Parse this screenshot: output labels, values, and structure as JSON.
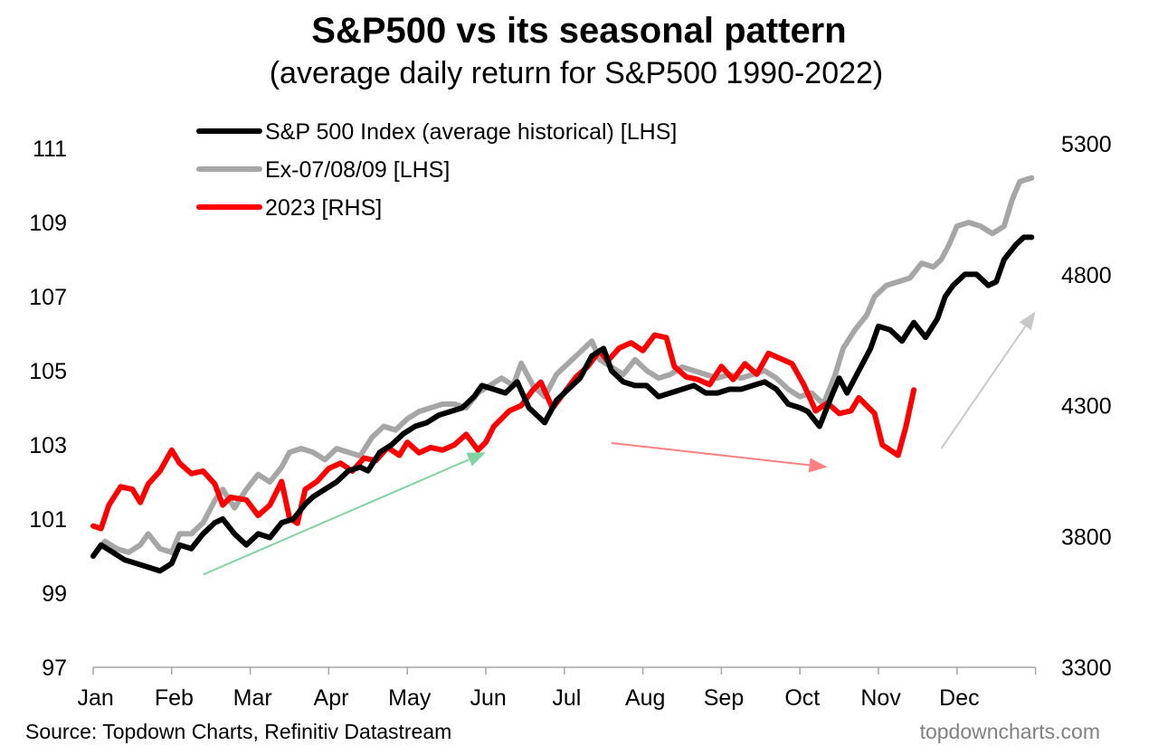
{
  "chart_data": {
    "type": "line",
    "title": "S&P500 vs its seasonal pattern",
    "subtitle": "(average daily return for S&P500 1990-2022)",
    "x_labels": [
      "Jan",
      "Feb",
      "Mar",
      "Apr",
      "May",
      "Jun",
      "Jul",
      "Aug",
      "Sep",
      "Oct",
      "Nov",
      "Dec"
    ],
    "y_left": {
      "ticks": [
        97,
        99,
        101,
        103,
        105,
        107,
        109,
        111
      ],
      "range": [
        97,
        112
      ]
    },
    "y_right": {
      "ticks": [
        3300,
        3800,
        4300,
        4800,
        5300
      ],
      "range": [
        3300,
        5300
      ]
    },
    "legend_position": "top-left",
    "series": [
      {
        "name": "S&P 500 Index (average historical) [LHS]",
        "axis": "left",
        "color": "#000000",
        "points": [
          [
            0,
            100.0
          ],
          [
            0.1,
            100.3
          ],
          [
            0.25,
            100.1
          ],
          [
            0.4,
            99.9
          ],
          [
            0.55,
            99.8
          ],
          [
            0.7,
            99.7
          ],
          [
            0.85,
            99.6
          ],
          [
            1.0,
            99.8
          ],
          [
            1.1,
            100.3
          ],
          [
            1.25,
            100.2
          ],
          [
            1.4,
            100.6
          ],
          [
            1.55,
            100.9
          ],
          [
            1.65,
            101.0
          ],
          [
            1.8,
            100.6
          ],
          [
            1.95,
            100.3
          ],
          [
            2.1,
            100.6
          ],
          [
            2.25,
            100.5
          ],
          [
            2.4,
            100.9
          ],
          [
            2.55,
            101.0
          ],
          [
            2.7,
            101.4
          ],
          [
            2.8,
            101.6
          ],
          [
            2.95,
            101.8
          ],
          [
            3.1,
            102.0
          ],
          [
            3.25,
            102.3
          ],
          [
            3.4,
            102.4
          ],
          [
            3.5,
            102.3
          ],
          [
            3.65,
            102.8
          ],
          [
            3.8,
            103.0
          ],
          [
            3.95,
            103.3
          ],
          [
            4.1,
            103.5
          ],
          [
            4.25,
            103.6
          ],
          [
            4.4,
            103.8
          ],
          [
            4.55,
            103.9
          ],
          [
            4.7,
            104.0
          ],
          [
            4.85,
            104.3
          ],
          [
            4.95,
            104.6
          ],
          [
            5.1,
            104.5
          ],
          [
            5.25,
            104.4
          ],
          [
            5.4,
            104.7
          ],
          [
            5.55,
            104.0
          ],
          [
            5.75,
            103.6
          ],
          [
            5.9,
            104.2
          ],
          [
            6.05,
            104.5
          ],
          [
            6.2,
            104.8
          ],
          [
            6.35,
            105.4
          ],
          [
            6.5,
            105.6
          ],
          [
            6.6,
            105.0
          ],
          [
            6.75,
            104.7
          ],
          [
            6.9,
            104.6
          ],
          [
            7.05,
            104.6
          ],
          [
            7.2,
            104.3
          ],
          [
            7.35,
            104.4
          ],
          [
            7.5,
            104.5
          ],
          [
            7.65,
            104.6
          ],
          [
            7.8,
            104.4
          ],
          [
            7.95,
            104.4
          ],
          [
            8.1,
            104.5
          ],
          [
            8.25,
            104.5
          ],
          [
            8.4,
            104.6
          ],
          [
            8.55,
            104.7
          ],
          [
            8.7,
            104.5
          ],
          [
            8.85,
            104.1
          ],
          [
            9.0,
            104.0
          ],
          [
            9.1,
            103.9
          ],
          [
            9.25,
            103.5
          ],
          [
            9.4,
            104.3
          ],
          [
            9.5,
            104.8
          ],
          [
            9.6,
            104.4
          ],
          [
            9.75,
            105.0
          ],
          [
            9.9,
            105.6
          ],
          [
            10.0,
            106.2
          ],
          [
            10.15,
            106.1
          ],
          [
            10.3,
            105.8
          ],
          [
            10.45,
            106.3
          ],
          [
            10.6,
            105.9
          ],
          [
            10.75,
            106.4
          ],
          [
            10.85,
            107.0
          ],
          [
            10.95,
            107.3
          ],
          [
            11.1,
            107.6
          ],
          [
            11.25,
            107.6
          ],
          [
            11.4,
            107.3
          ],
          [
            11.5,
            107.4
          ],
          [
            11.6,
            108.0
          ],
          [
            11.75,
            108.4
          ],
          [
            11.85,
            108.6
          ],
          [
            11.95,
            108.6
          ]
        ]
      },
      {
        "name": "Ex-07/08/09 [LHS]",
        "axis": "left",
        "color": "#a6a6a6",
        "points": [
          [
            0,
            100.0
          ],
          [
            0.15,
            100.4
          ],
          [
            0.3,
            100.2
          ],
          [
            0.45,
            100.1
          ],
          [
            0.6,
            100.3
          ],
          [
            0.7,
            100.6
          ],
          [
            0.85,
            100.2
          ],
          [
            1.0,
            100.1
          ],
          [
            1.1,
            100.6
          ],
          [
            1.25,
            100.6
          ],
          [
            1.4,
            100.9
          ],
          [
            1.55,
            101.5
          ],
          [
            1.65,
            101.8
          ],
          [
            1.8,
            101.3
          ],
          [
            1.95,
            101.8
          ],
          [
            2.1,
            102.2
          ],
          [
            2.25,
            102.0
          ],
          [
            2.4,
            102.4
          ],
          [
            2.5,
            102.8
          ],
          [
            2.65,
            102.9
          ],
          [
            2.8,
            102.8
          ],
          [
            2.95,
            102.6
          ],
          [
            3.1,
            102.9
          ],
          [
            3.25,
            102.8
          ],
          [
            3.4,
            102.7
          ],
          [
            3.55,
            103.2
          ],
          [
            3.7,
            103.5
          ],
          [
            3.85,
            103.4
          ],
          [
            4.0,
            103.7
          ],
          [
            4.15,
            103.9
          ],
          [
            4.3,
            104.0
          ],
          [
            4.45,
            104.1
          ],
          [
            4.6,
            104.1
          ],
          [
            4.75,
            104.0
          ],
          [
            4.9,
            104.4
          ],
          [
            5.05,
            104.6
          ],
          [
            5.2,
            104.8
          ],
          [
            5.35,
            104.6
          ],
          [
            5.45,
            105.2
          ],
          [
            5.6,
            104.6
          ],
          [
            5.75,
            104.3
          ],
          [
            5.9,
            104.9
          ],
          [
            6.05,
            105.2
          ],
          [
            6.2,
            105.5
          ],
          [
            6.35,
            105.8
          ],
          [
            6.45,
            105.3
          ],
          [
            6.6,
            105.1
          ],
          [
            6.75,
            104.9
          ],
          [
            6.9,
            105.3
          ],
          [
            7.05,
            105.0
          ],
          [
            7.2,
            104.8
          ],
          [
            7.35,
            104.9
          ],
          [
            7.5,
            105.1
          ],
          [
            7.65,
            105.0
          ],
          [
            7.8,
            104.9
          ],
          [
            7.95,
            104.8
          ],
          [
            8.1,
            104.9
          ],
          [
            8.25,
            104.8
          ],
          [
            8.4,
            104.9
          ],
          [
            8.55,
            105.0
          ],
          [
            8.7,
            104.8
          ],
          [
            8.85,
            104.5
          ],
          [
            9.0,
            104.3
          ],
          [
            9.15,
            104.4
          ],
          [
            9.3,
            104.1
          ],
          [
            9.45,
            104.9
          ],
          [
            9.55,
            105.6
          ],
          [
            9.7,
            106.1
          ],
          [
            9.85,
            106.5
          ],
          [
            9.95,
            107.0
          ],
          [
            10.1,
            107.3
          ],
          [
            10.25,
            107.4
          ],
          [
            10.4,
            107.5
          ],
          [
            10.55,
            107.9
          ],
          [
            10.7,
            107.8
          ],
          [
            10.8,
            108.0
          ],
          [
            10.9,
            108.4
          ],
          [
            11.0,
            108.9
          ],
          [
            11.15,
            109.0
          ],
          [
            11.3,
            108.9
          ],
          [
            11.45,
            108.7
          ],
          [
            11.6,
            108.9
          ],
          [
            11.7,
            109.6
          ],
          [
            11.8,
            110.1
          ],
          [
            11.95,
            110.2
          ]
        ]
      },
      {
        "name": "2023 [RHS]",
        "axis": "right",
        "color": "#ff0000",
        "points": [
          [
            0,
            3840
          ],
          [
            0.1,
            3830
          ],
          [
            0.2,
            3920
          ],
          [
            0.35,
            3990
          ],
          [
            0.5,
            3980
          ],
          [
            0.6,
            3930
          ],
          [
            0.7,
            4000
          ],
          [
            0.85,
            4050
          ],
          [
            1.0,
            4130
          ],
          [
            1.1,
            4080
          ],
          [
            1.25,
            4040
          ],
          [
            1.4,
            4050
          ],
          [
            1.55,
            4000
          ],
          [
            1.65,
            3920
          ],
          [
            1.75,
            3950
          ],
          [
            1.95,
            3940
          ],
          [
            2.1,
            3880
          ],
          [
            2.25,
            3920
          ],
          [
            2.4,
            4010
          ],
          [
            2.5,
            3870
          ],
          [
            2.6,
            3850
          ],
          [
            2.7,
            3980
          ],
          [
            2.85,
            4010
          ],
          [
            3.0,
            4060
          ],
          [
            3.15,
            4080
          ],
          [
            3.3,
            4050
          ],
          [
            3.45,
            4100
          ],
          [
            3.6,
            4090
          ],
          [
            3.75,
            4140
          ],
          [
            3.9,
            4110
          ],
          [
            4.0,
            4160
          ],
          [
            4.15,
            4120
          ],
          [
            4.3,
            4140
          ],
          [
            4.45,
            4130
          ],
          [
            4.6,
            4150
          ],
          [
            4.75,
            4190
          ],
          [
            4.9,
            4130
          ],
          [
            5.0,
            4160
          ],
          [
            5.1,
            4220
          ],
          [
            5.3,
            4280
          ],
          [
            5.45,
            4300
          ],
          [
            5.6,
            4360
          ],
          [
            5.7,
            4390
          ],
          [
            5.85,
            4290
          ],
          [
            6.0,
            4350
          ],
          [
            6.15,
            4410
          ],
          [
            6.3,
            4450
          ],
          [
            6.45,
            4510
          ],
          [
            6.55,
            4470
          ],
          [
            6.7,
            4520
          ],
          [
            6.85,
            4540
          ],
          [
            7.0,
            4510
          ],
          [
            7.15,
            4570
          ],
          [
            7.3,
            4560
          ],
          [
            7.4,
            4450
          ],
          [
            7.55,
            4410
          ],
          [
            7.7,
            4400
          ],
          [
            7.85,
            4380
          ],
          [
            8.0,
            4450
          ],
          [
            8.15,
            4400
          ],
          [
            8.3,
            4460
          ],
          [
            8.45,
            4420
          ],
          [
            8.6,
            4500
          ],
          [
            8.75,
            4480
          ],
          [
            8.9,
            4460
          ],
          [
            9.05,
            4380
          ],
          [
            9.2,
            4280
          ],
          [
            9.35,
            4310
          ],
          [
            9.5,
            4270
          ],
          [
            9.65,
            4280
          ],
          [
            9.75,
            4330
          ],
          [
            9.85,
            4300
          ],
          [
            9.95,
            4270
          ],
          [
            10.05,
            4150
          ],
          [
            10.15,
            4130
          ],
          [
            10.25,
            4110
          ],
          [
            10.35,
            4220
          ],
          [
            10.45,
            4360
          ]
        ]
      }
    ],
    "annotations": [
      {
        "type": "arrow",
        "color": "#7fd4a0",
        "from": [
          1.4,
          99.5
        ],
        "to": [
          5.0,
          102.8
        ]
      },
      {
        "type": "arrow",
        "color": "#ff8080",
        "from": [
          6.6,
          103.05
        ],
        "to": [
          9.35,
          102.4
        ]
      },
      {
        "type": "arrow",
        "color": "#c8c8c8",
        "from": [
          10.8,
          102.9
        ],
        "to": [
          12.0,
          106.6
        ]
      }
    ],
    "source": "Source: Topdown Charts, Refinitiv Datastream",
    "watermark": "topdowncharts.com"
  }
}
